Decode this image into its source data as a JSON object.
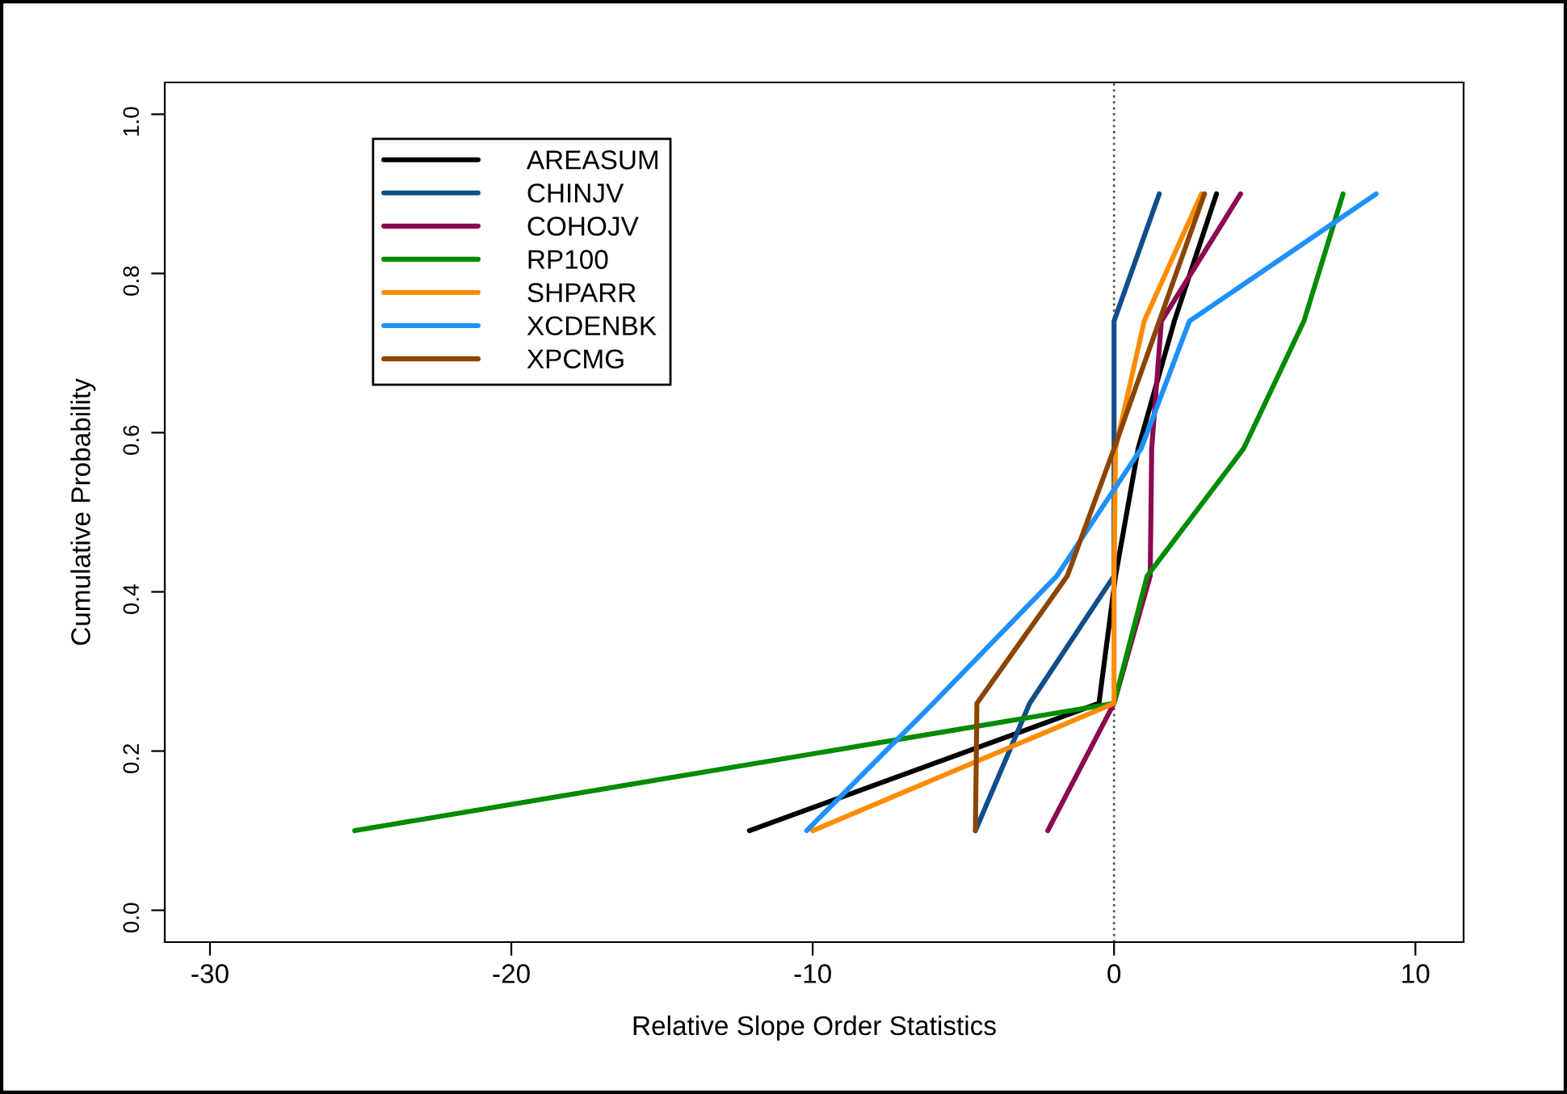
{
  "chart_data": {
    "type": "line",
    "xlabel": "Relative Slope Order Statistics",
    "ylabel": "Cumulative Probability",
    "xlim": [
      -31.5,
      11.6
    ],
    "ylim": [
      -0.04,
      1.04
    ],
    "xticks": [
      -30,
      -20,
      -10,
      0,
      10
    ],
    "yticks": [
      {
        "value": 0,
        "label": "0.0"
      },
      0.2,
      0.4,
      0.6,
      0.8,
      {
        "value": 1,
        "label": "1.0"
      }
    ],
    "grid": false,
    "legend": "top left",
    "marker": "none",
    "line_style": "solid",
    "ref_lines": [
      {
        "axis": "x",
        "value": 0,
        "color": "#555555",
        "line_style": "dotted"
      }
    ],
    "series": [
      {
        "name": "AREASUM",
        "color": "#000000",
        "x": [
          -12.1,
          -0.5,
          0.05,
          0.8,
          2.0,
          3.4
        ],
        "values": [
          0.1,
          0.26,
          0.42,
          0.58,
          0.74,
          0.9
        ]
      },
      {
        "name": "CHINJV",
        "color": "#104e8b",
        "x": [
          -4.6,
          -2.8,
          0,
          0,
          0,
          1.5
        ],
        "values": [
          0.1,
          0.26,
          0.42,
          0.58,
          0.74,
          0.9
        ]
      },
      {
        "name": "COHOJV",
        "color": "#8b0a50",
        "x": [
          -2.2,
          0,
          1.2,
          1.25,
          1.57,
          4.2
        ],
        "values": [
          0.1,
          0.26,
          0.42,
          0.58,
          0.74,
          0.9
        ]
      },
      {
        "name": "RP100",
        "color": "#008b00",
        "x": [
          -25.2,
          0,
          1.1,
          4.3,
          6.3,
          7.6
        ],
        "values": [
          0.1,
          0.26,
          0.42,
          0.58,
          0.74,
          0.9
        ]
      },
      {
        "name": "SHPARR",
        "color": "#ff8c00",
        "x": [
          -10.0,
          0,
          0,
          0.05,
          1.0,
          2.9
        ],
        "values": [
          0.1,
          0.26,
          0.42,
          0.58,
          0.74,
          0.9
        ]
      },
      {
        "name": "XCDENBK",
        "color": "#1e90ff",
        "x": [
          -10.2,
          -6.0,
          -1.9,
          0.9,
          2.5,
          8.7
        ],
        "values": [
          0.1,
          0.26,
          0.42,
          0.58,
          0.74,
          0.9
        ]
      },
      {
        "name": "XPCMG",
        "color": "#8b4500",
        "x": [
          -4.6,
          -4.55,
          -1.55,
          0,
          1.5,
          3.0
        ],
        "values": [
          0.1,
          0.26,
          0.42,
          0.58,
          0.74,
          0.9
        ]
      }
    ]
  }
}
